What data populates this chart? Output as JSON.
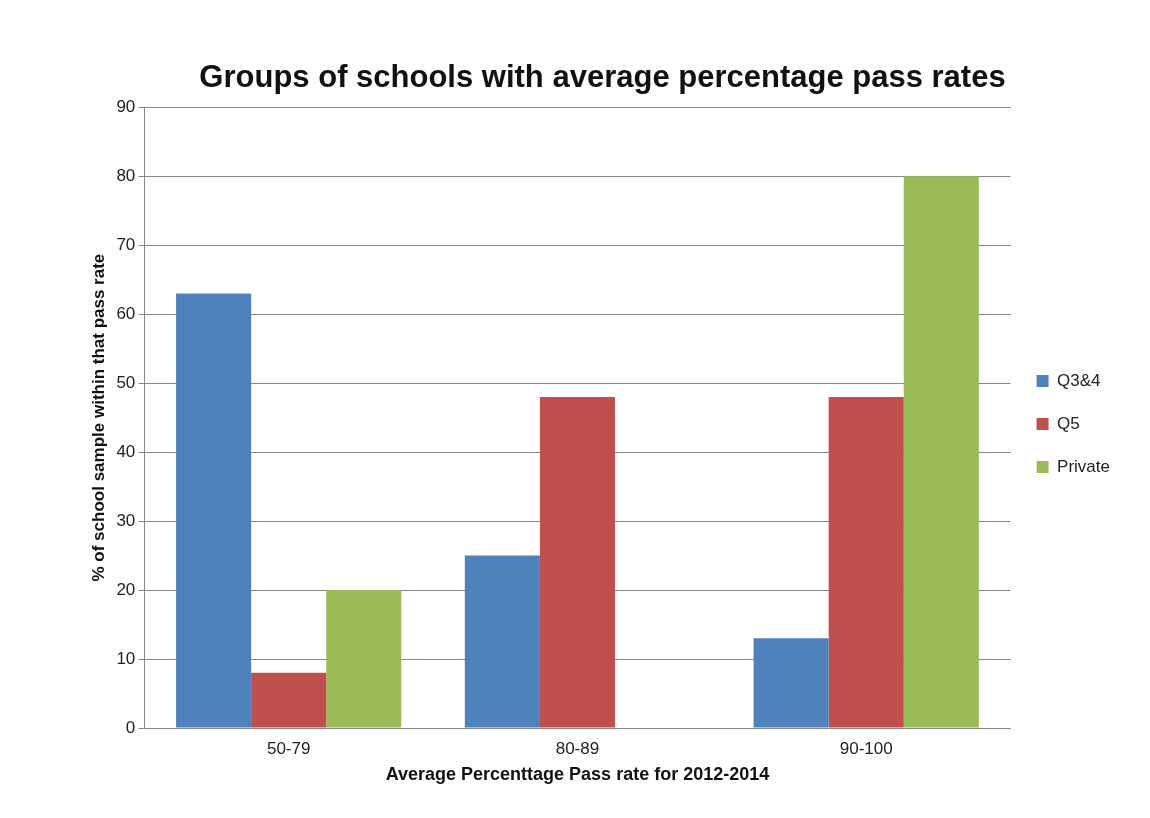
{
  "chart_data": {
    "type": "bar",
    "title": "Groups of schools with average percentage pass rates",
    "xlabel": "Average Percenttage Pass rate for 2012-2014",
    "ylabel": "% of school sample within that pass rate",
    "categories": [
      "50-79",
      "80-89",
      "90-100"
    ],
    "series": [
      {
        "name": "Q3&4",
        "color": "#4f81bd",
        "values": [
          63,
          25,
          13
        ]
      },
      {
        "name": "Q5",
        "color": "#c0504d",
        "values": [
          8,
          48,
          48
        ]
      },
      {
        "name": "Private",
        "color": "#9bbb59",
        "values": [
          20,
          0,
          80
        ]
      }
    ],
    "ylim": [
      0,
      90
    ],
    "yticks": [
      0,
      10,
      20,
      30,
      40,
      50,
      60,
      70,
      80,
      90
    ],
    "grid": "y",
    "legend": "right"
  }
}
